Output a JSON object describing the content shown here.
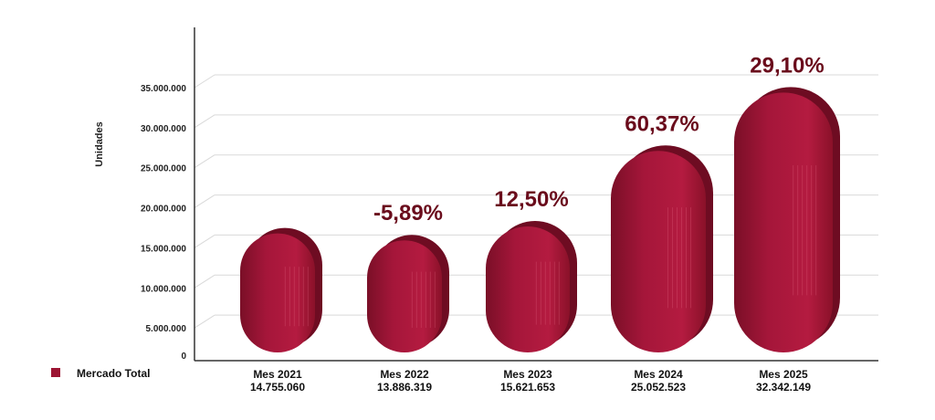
{
  "chart_data": {
    "type": "bar",
    "ylabel": "Unidades",
    "ylim": [
      0,
      35000000
    ],
    "yticks": [
      "0",
      "5.000.000",
      "10.000.000",
      "15.000.000",
      "20.000.000",
      "25.000.000",
      "30.000.000",
      "35.000.000"
    ],
    "ytick_values": [
      0,
      5000000,
      10000000,
      15000000,
      20000000,
      25000000,
      30000000,
      35000000
    ],
    "categories": [
      "Mes 2021",
      "Mes 2022",
      "Mes 2023",
      "Mes 2024",
      "Mes 2025"
    ],
    "value_labels": [
      "14.755.060",
      "13.886.319",
      "15.621.653",
      "25.052.523",
      "32.342.149"
    ],
    "values": [
      14755060,
      13886319,
      15621653,
      25052523,
      32342149
    ],
    "change_labels": [
      "",
      "-5,89%",
      "12,50%",
      "60,37%",
      "29,10%"
    ],
    "series": [
      {
        "name": "Mercado Total",
        "values": [
          14755060,
          13886319,
          15621653,
          25052523,
          32342149
        ]
      }
    ],
    "legend": "bottom-left",
    "grid": true
  },
  "colors": {
    "bar": "#9c1433",
    "bar_dark": "#6e0c22",
    "bar_light": "#c02042",
    "label": "#6a0c1c",
    "grid": "#d9d9d9",
    "axis": "#333333"
  }
}
